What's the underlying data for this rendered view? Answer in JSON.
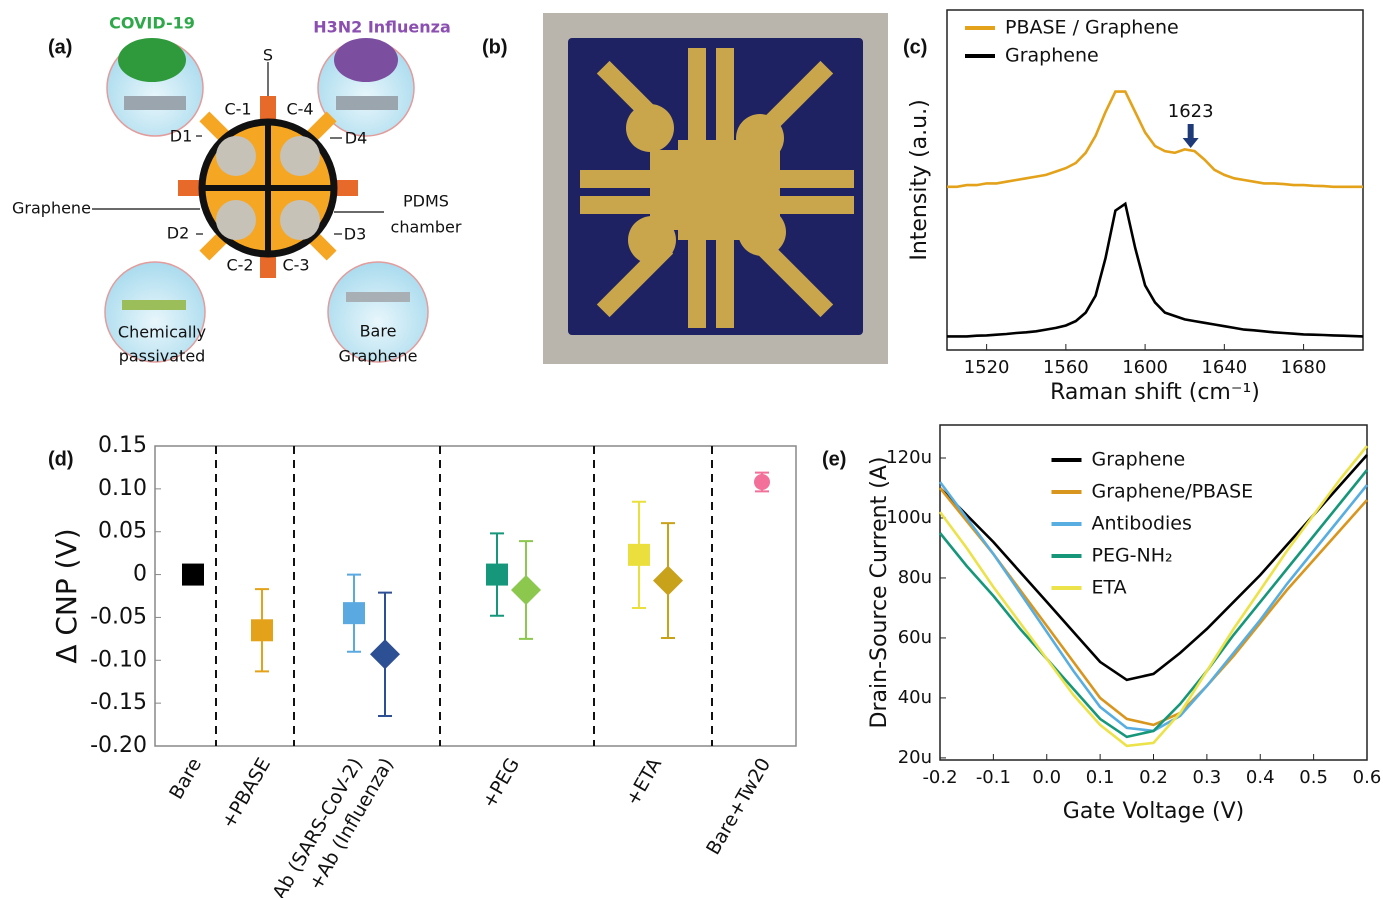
{
  "panel_labels": [
    "(a)",
    "(b)",
    "(c)",
    "(d)",
    "(e)"
  ],
  "diagram": {
    "virus_labels": [
      "COVID-19",
      "H3N2 Influenza"
    ],
    "source": "S",
    "contacts": [
      "C-1",
      "C-2",
      "C-3",
      "C-4"
    ],
    "drains": [
      "D1",
      "D2",
      "D3",
      "D4"
    ],
    "graphene": "Graphene",
    "chamber": [
      "PDMS",
      "chamber"
    ],
    "surfaces": [
      [
        "Chemically",
        "passivated"
      ],
      [
        "Bare",
        "Graphene"
      ]
    ]
  },
  "chart_data": [
    {
      "type": "line",
      "xlabel": "Raman shift (cm⁻¹)",
      "ylabel": "Intensity (a.u.)",
      "annotation": "1623",
      "legend": "upper left",
      "xlim": [
        1500,
        1710
      ],
      "xticks": [
        1520,
        1560,
        1600,
        1640,
        1680
      ],
      "ylim": [
        0,
        1
      ],
      "x": [
        1500,
        1505,
        1510,
        1515,
        1520,
        1525,
        1530,
        1535,
        1540,
        1545,
        1550,
        1555,
        1560,
        1565,
        1570,
        1575,
        1580,
        1585,
        1590,
        1595,
        1600,
        1605,
        1610,
        1615,
        1620,
        1625,
        1630,
        1635,
        1640,
        1645,
        1650,
        1655,
        1660,
        1665,
        1670,
        1675,
        1680,
        1685,
        1690,
        1695,
        1700,
        1705,
        1710
      ],
      "series": [
        {
          "name": "PBASE / Graphene",
          "color": "#e3a21a",
          "values": [
            0.48,
            0.48,
            0.485,
            0.485,
            0.49,
            0.49,
            0.495,
            0.5,
            0.505,
            0.51,
            0.515,
            0.525,
            0.535,
            0.55,
            0.58,
            0.63,
            0.7,
            0.76,
            0.76,
            0.7,
            0.64,
            0.6,
            0.585,
            0.58,
            0.59,
            0.585,
            0.56,
            0.53,
            0.515,
            0.505,
            0.5,
            0.495,
            0.49,
            0.49,
            0.488,
            0.485,
            0.485,
            0.483,
            0.482,
            0.48,
            0.48,
            0.48,
            0.48
          ]
        },
        {
          "name": "Graphene",
          "color": "#000000",
          "values": [
            0.04,
            0.04,
            0.04,
            0.042,
            0.043,
            0.045,
            0.047,
            0.05,
            0.052,
            0.055,
            0.06,
            0.065,
            0.072,
            0.085,
            0.11,
            0.16,
            0.27,
            0.41,
            0.43,
            0.3,
            0.19,
            0.14,
            0.11,
            0.1,
            0.09,
            0.085,
            0.08,
            0.075,
            0.07,
            0.065,
            0.06,
            0.058,
            0.055,
            0.052,
            0.05,
            0.048,
            0.046,
            0.045,
            0.044,
            0.043,
            0.042,
            0.041,
            0.04
          ]
        }
      ]
    },
    {
      "type": "errorbar",
      "ylabel": "Δ CNP (V)",
      "categories": [
        "Bare",
        "+PBASE",
        "+Ab (SARS-CoV-2)",
        "+Ab (Influenza)",
        "+PEG",
        "+ETA",
        "Bare+Tw20"
      ],
      "ylim": [
        -0.2,
        0.15
      ],
      "yticks": [
        0.15,
        {
          "value": 0.1,
          "label": "0.10"
        },
        0.05,
        0,
        -0.05,
        {
          "value": -0.1,
          "label": "-0.10"
        },
        -0.15,
        {
          "value": -0.2,
          "label": "-0.20"
        }
      ],
      "series": [
        {
          "marker": "square",
          "values": [
            0,
            -0.065,
            -0.045,
            null,
            0,
            0.023,
            null
          ],
          "errors": [
            null,
            0.048,
            0.045,
            null,
            0.048,
            0.062,
            null
          ],
          "colors": [
            "#000000",
            "#e3a21a",
            "#5aa9e0",
            null,
            "#16977b",
            "#eadf3c",
            null
          ]
        },
        {
          "marker": "diamond",
          "values": [
            null,
            null,
            null,
            -0.093,
            -0.018,
            -0.007,
            null
          ],
          "errors": [
            null,
            null,
            null,
            0.072,
            0.057,
            0.067,
            null
          ],
          "colors": [
            null,
            null,
            null,
            "#2d4f94",
            "#8cc84e",
            "#c9a21c",
            null
          ]
        },
        {
          "marker": "circle",
          "values": [
            null,
            null,
            null,
            null,
            null,
            null,
            0.108
          ],
          "errors": [
            null,
            null,
            null,
            null,
            null,
            null,
            0.011
          ],
          "colors": [
            null,
            null,
            null,
            null,
            null,
            null,
            "#f2709a"
          ]
        }
      ]
    },
    {
      "type": "line",
      "xlabel": "Gate Voltage (V)",
      "ylabel": "Drain-Source Current (A)",
      "legend": "upper center",
      "xlim": [
        -0.2,
        0.6
      ],
      "xticks": [
        -0.2,
        -0.1,
        {
          "value": 0,
          "label": "0.0"
        },
        0.1,
        0.2,
        0.3,
        0.4,
        0.5,
        0.6
      ],
      "ylim": [
        1.93e-05,
        0.000131
      ],
      "yticks": [
        {
          "value": 2e-05,
          "label": "20u"
        },
        {
          "value": 4e-05,
          "label": "40u"
        },
        {
          "value": 6e-05,
          "label": "60u"
        },
        {
          "value": 8e-05,
          "label": "80u"
        },
        {
          "value": 0.0001,
          "label": "100u"
        },
        {
          "value": 0.00012,
          "label": "120u"
        }
      ],
      "x": [
        -0.2,
        -0.15,
        -0.1,
        -0.05,
        0,
        0.05,
        0.1,
        0.15,
        0.2,
        0.25,
        0.3,
        0.35,
        0.4,
        0.45,
        0.5,
        0.55,
        0.6
      ],
      "series": [
        {
          "name": "Graphene",
          "color": "#000000",
          "values": [
            0.00011,
            0.000101,
            9.2e-05,
            8.2e-05,
            7.2e-05,
            6.2e-05,
            5.2e-05,
            4.6e-05,
            4.8e-05,
            5.5e-05,
            6.3e-05,
            7.2e-05,
            8.1e-05,
            9.1e-05,
            0.000101,
            0.000111,
            0.000121
          ]
        },
        {
          "name": "Graphene/PBASE",
          "color": "#d9961e",
          "values": [
            0.00011,
            9.9e-05,
            8.8e-05,
            7.6e-05,
            6.4e-05,
            5.2e-05,
            4e-05,
            3.3e-05,
            3.1e-05,
            3.5e-05,
            4.4e-05,
            5.4e-05,
            6.5e-05,
            7.6e-05,
            8.6e-05,
            9.6e-05,
            0.000106
          ]
        },
        {
          "name": "Antibodies",
          "color": "#58aee0",
          "values": [
            0.000112,
            0.0001,
            8.8e-05,
            7.5e-05,
            6.2e-05,
            4.9e-05,
            3.7e-05,
            3e-05,
            2.9e-05,
            3.4e-05,
            4.4e-05,
            5.5e-05,
            6.6e-05,
            7.8e-05,
            8.9e-05,
            0.0001,
            0.000111
          ]
        },
        {
          "name": "PEG-NH₂",
          "color": "#17977a",
          "values": [
            9.5e-05,
            8.4e-05,
            7.4e-05,
            6.3e-05,
            5.3e-05,
            4.3e-05,
            3.3e-05,
            2.7e-05,
            2.9e-05,
            3.8e-05,
            4.9e-05,
            6.1e-05,
            7.2e-05,
            8.3e-05,
            9.4e-05,
            0.000105,
            0.000116
          ]
        },
        {
          "name": "ETA",
          "color": "#ece24a",
          "values": [
            0.000102,
            9e-05,
            7.7e-05,
            6.5e-05,
            5.3e-05,
            4.1e-05,
            3.1e-05,
            2.4e-05,
            2.5e-05,
            3.5e-05,
            4.9e-05,
            6.3e-05,
            7.6e-05,
            8.9e-05,
            0.000101,
            0.000113,
            0.000124
          ]
        }
      ]
    }
  ]
}
